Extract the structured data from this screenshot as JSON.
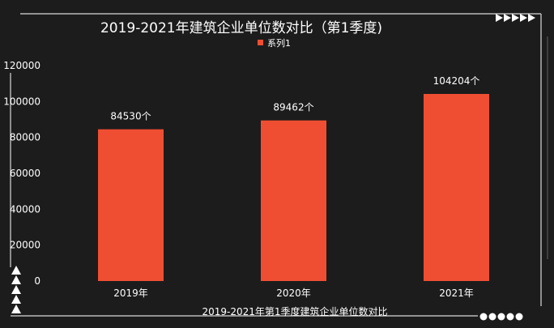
{
  "chart_data": {
    "type": "bar",
    "title": "2019-2021年建筑企业单位数对比（第1季度)",
    "xlabel": "2019-2021年第1季度建筑企业单位数对比",
    "ylabel": "",
    "categories": [
      "2019年",
      "2020年",
      "2021年"
    ],
    "series": [
      {
        "name": "系列1",
        "values": [
          84530,
          89462,
          104204
        ]
      }
    ],
    "data_labels": [
      "84530个",
      "89462个",
      "104204个"
    ],
    "y_ticks": [
      "0",
      "20000",
      "40000",
      "60000",
      "80000",
      "100000",
      "120000"
    ],
    "ylim": [
      0,
      120000
    ],
    "grid": false,
    "legend": "top-center",
    "colors": {
      "bar": "#f04e32",
      "background": "#1c1c1c",
      "text": "#ffffff",
      "frame": "#d9d9d9"
    }
  },
  "decorations": {
    "top_right_icon": "right-arrows-icon",
    "bottom_left_icon": "up-arrows-icon",
    "bottom_right_icon": "dots-icon"
  }
}
